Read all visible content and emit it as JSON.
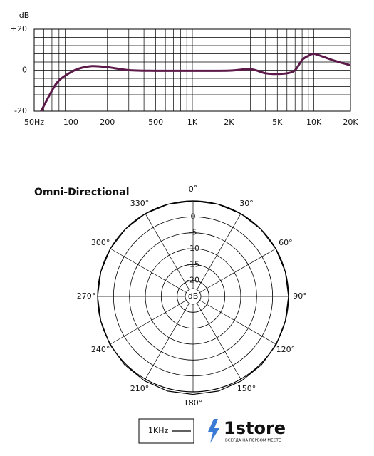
{
  "chart_data": [
    {
      "type": "line",
      "y_label": "dB",
      "log_x": true,
      "x": [
        57,
        70,
        80,
        100,
        120,
        150,
        200,
        300,
        500,
        1000,
        2000,
        3000,
        4000,
        5000,
        6000,
        7000,
        8000,
        9000,
        10000,
        12000,
        15000,
        20000
      ],
      "series": [
        {
          "color": "#5c1a4a",
          "values": [
            -20,
            -10,
            -5,
            -1,
            1,
            2,
            1.5,
            0,
            -0.3,
            -0.3,
            -0.2,
            0.5,
            -1.5,
            -1.8,
            -1.5,
            0,
            5,
            7,
            8,
            6.5,
            4.5,
            2.4
          ]
        }
      ],
      "xlim": [
        50,
        20000
      ],
      "xticks": [
        {
          "value": 50,
          "label": "50Hz"
        },
        100,
        200,
        500,
        {
          "value": 1000,
          "label": "1K"
        },
        {
          "value": 2000,
          "label": "2K"
        },
        {
          "value": 5000,
          "label": "5K"
        },
        {
          "value": 10000,
          "label": "10K"
        },
        {
          "value": 20000,
          "label": "20K"
        }
      ],
      "x_minor_ticks": [
        60,
        70,
        80,
        90,
        300,
        400,
        600,
        700,
        800,
        900,
        3000,
        4000,
        6000,
        7000,
        8000,
        9000
      ],
      "ylim": [
        -20,
        20
      ],
      "yticks": [
        {
          "value": 20,
          "label": "+20"
        },
        0,
        -20
      ],
      "y_minor_ticks": [
        -16,
        -12,
        -8,
        -4,
        4,
        8,
        12,
        16
      ],
      "grid": true
    },
    {
      "type": "polar",
      "title": "Omni-Directional",
      "r_unit_label": "dB",
      "rlim": [
        -25,
        5
      ],
      "rticks": [
        0,
        -5,
        -10,
        -15,
        -20
      ],
      "thetaticks": [
        {
          "value": 0,
          "label": "0˚"
        },
        {
          "value": 30,
          "label": "30°"
        },
        {
          "value": 60,
          "label": "60°"
        },
        {
          "value": 90,
          "label": "90°"
        },
        {
          "value": 120,
          "label": "120°"
        },
        {
          "value": 150,
          "label": "150°"
        },
        {
          "value": 180,
          "label": "180°"
        },
        {
          "value": 210,
          "label": "210°"
        },
        {
          "value": 240,
          "label": "240°"
        },
        {
          "value": 270,
          "label": "270°"
        },
        {
          "value": 300,
          "label": "300°"
        },
        {
          "value": 330,
          "label": "330°"
        }
      ],
      "theta": [
        0,
        15,
        30,
        45,
        60,
        75,
        90,
        105,
        120,
        135,
        150,
        165,
        180,
        195,
        210,
        225,
        240,
        255,
        270,
        285,
        300,
        315,
        330,
        345
      ],
      "series": [
        {
          "name": "1KHz",
          "color": "#000000",
          "values": [
            5,
            5,
            5,
            5,
            5,
            5,
            5,
            5,
            5.2,
            5.4,
            5.6,
            5.8,
            5.8,
            5.8,
            5.6,
            5.4,
            5.2,
            5,
            5,
            5,
            5,
            5,
            5,
            5
          ]
        }
      ]
    }
  ],
  "watermark": {
    "brand": "1store",
    "tagline": "ВСЕГДА НА ПЕРВОМ МЕСТЕ"
  }
}
